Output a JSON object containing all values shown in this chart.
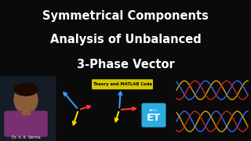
{
  "title_line1": "Symmetrical Components",
  "title_line2": "Analysis of Unbalanced",
  "title_line3": "3-Phase Vector",
  "title_color": "#ffffff",
  "bg_color_top": "#0a0a0a",
  "bg_color_bottom": "#1c2b3a",
  "title_fontsize": 10.5,
  "subtitle_text": "Theory and MATLAB Code",
  "subtitle_bg": "#d4c800",
  "subtitle_color": "#000000",
  "author_text": "Dr. A. K. Verma",
  "brand_text_top": "AKV's",
  "brand_text_main": "ET",
  "brand_box_color": "#2aaee0",
  "vector1_color": "#3399ff",
  "vector2_color": "#ff3333",
  "vector3_color": "#ffdd00",
  "sine_colors_top": [
    "#d4aa00",
    "#3366ff",
    "#cc2222"
  ],
  "sine_colors_bottom": [
    "#3366ff",
    "#d4aa00",
    "#cc2222"
  ],
  "person_skin": "#8b5c3a",
  "person_shirt": "#7a3070",
  "person_bg": "#1c2b3a"
}
